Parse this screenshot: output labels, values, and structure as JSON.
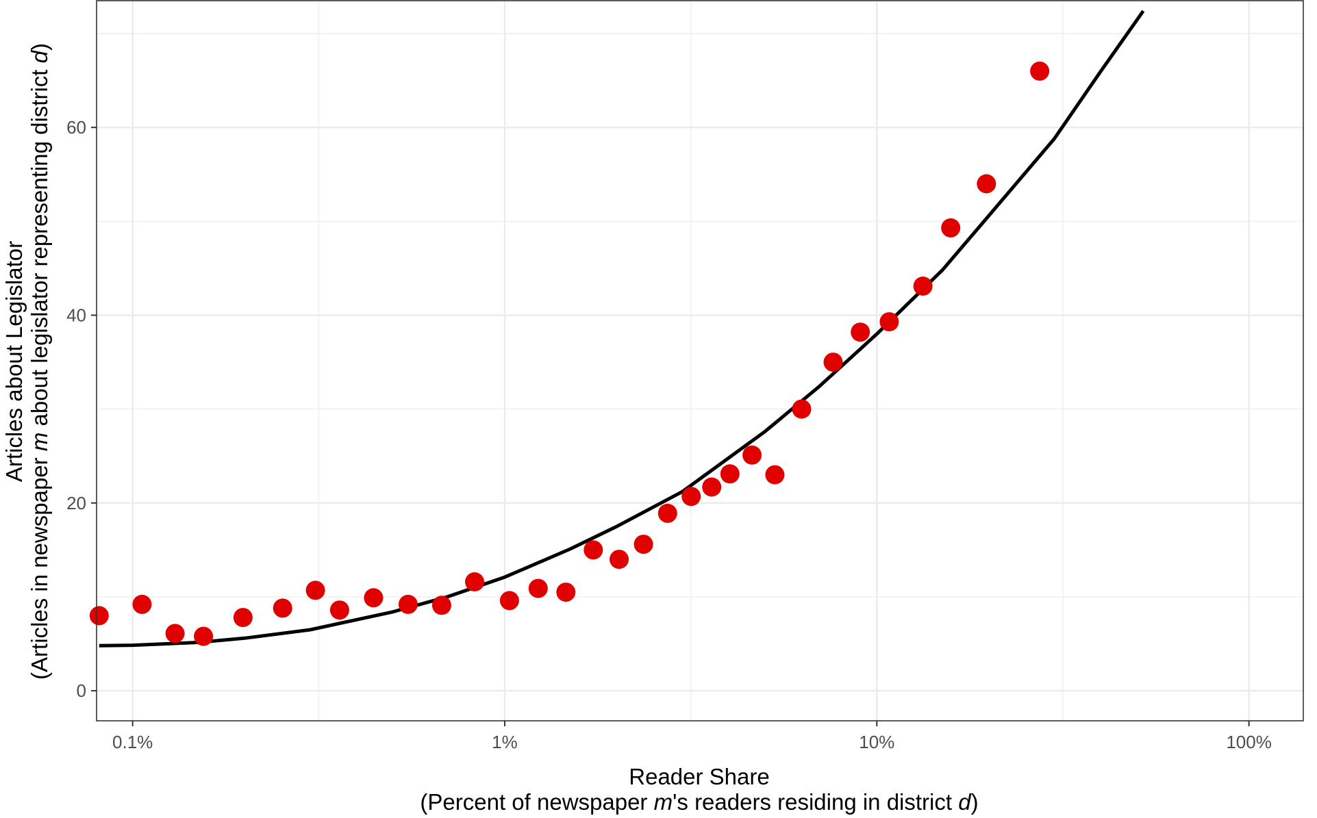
{
  "chart_data": {
    "type": "scatter",
    "xscale": "log",
    "xlim": [
      0.08,
      140
    ],
    "ylim": [
      -3.2,
      73.5
    ],
    "grid": true,
    "x_ticks": [
      0.1,
      1,
      10,
      100
    ],
    "x_tick_labels": [
      "0.1%",
      "1%",
      "10%",
      "100%"
    ],
    "y_ticks": [
      0,
      20,
      40,
      60
    ],
    "y_tick_labels": [
      "0",
      "20",
      "40",
      "60"
    ],
    "xlabel": {
      "line1": "Reader Share",
      "line2_a": "(Percent of newspaper ",
      "line2_m": "m",
      "line2_b": "'s readers residing in district ",
      "line2_d": "d",
      "line2_c": ")"
    },
    "ylabel": {
      "line1": "Articles about Legislator",
      "line2_a": "(Articles in newspaper ",
      "line2_m": "m",
      "line2_b": " about legislator representing district ",
      "line2_d": "d",
      "line2_c": ")"
    },
    "colors": {
      "points": "#e00000",
      "fit_line": "#000000",
      "grid": "#ebebeb",
      "frame": "#333333"
    },
    "points": [
      {
        "x": 0.0813,
        "y": 8.0
      },
      {
        "x": 0.106,
        "y": 9.2
      },
      {
        "x": 0.13,
        "y": 6.1
      },
      {
        "x": 0.155,
        "y": 5.8
      },
      {
        "x": 0.198,
        "y": 7.8
      },
      {
        "x": 0.253,
        "y": 8.8
      },
      {
        "x": 0.31,
        "y": 10.7
      },
      {
        "x": 0.36,
        "y": 8.6
      },
      {
        "x": 0.444,
        "y": 9.9
      },
      {
        "x": 0.55,
        "y": 9.2
      },
      {
        "x": 0.677,
        "y": 9.1
      },
      {
        "x": 0.83,
        "y": 11.6
      },
      {
        "x": 1.03,
        "y": 9.6
      },
      {
        "x": 1.23,
        "y": 10.9
      },
      {
        "x": 1.46,
        "y": 10.5
      },
      {
        "x": 1.73,
        "y": 15.0
      },
      {
        "x": 2.03,
        "y": 14.0
      },
      {
        "x": 2.36,
        "y": 15.6
      },
      {
        "x": 2.74,
        "y": 18.9
      },
      {
        "x": 3.17,
        "y": 20.7
      },
      {
        "x": 3.6,
        "y": 21.7
      },
      {
        "x": 4.03,
        "y": 23.1
      },
      {
        "x": 4.62,
        "y": 25.1
      },
      {
        "x": 5.32,
        "y": 23.0
      },
      {
        "x": 6.28,
        "y": 30.0
      },
      {
        "x": 7.63,
        "y": 35.0
      },
      {
        "x": 9.03,
        "y": 38.2
      },
      {
        "x": 10.8,
        "y": 39.3
      },
      {
        "x": 13.3,
        "y": 43.1
      },
      {
        "x": 15.8,
        "y": 49.3
      },
      {
        "x": 19.7,
        "y": 54.0
      },
      {
        "x": 27.4,
        "y": 66.0
      }
    ],
    "fit_line": [
      {
        "x": 0.0813,
        "y": 4.8
      },
      {
        "x": 0.1,
        "y": 4.85
      },
      {
        "x": 0.15,
        "y": 5.15
      },
      {
        "x": 0.2,
        "y": 5.6
      },
      {
        "x": 0.3,
        "y": 6.5
      },
      {
        "x": 0.5,
        "y": 8.4
      },
      {
        "x": 0.7,
        "y": 10.0
      },
      {
        "x": 1.0,
        "y": 12.1
      },
      {
        "x": 1.5,
        "y": 15.1
      },
      {
        "x": 2.0,
        "y": 17.5
      },
      {
        "x": 3.0,
        "y": 21.2
      },
      {
        "x": 5.0,
        "y": 27.6
      },
      {
        "x": 7.0,
        "y": 32.4
      },
      {
        "x": 10.0,
        "y": 38.0
      },
      {
        "x": 15.0,
        "y": 44.8
      },
      {
        "x": 20.0,
        "y": 50.6
      },
      {
        "x": 30.0,
        "y": 58.8
      },
      {
        "x": 40.0,
        "y": 66.0
      },
      {
        "x": 52.0,
        "y": 72.4
      }
    ]
  }
}
